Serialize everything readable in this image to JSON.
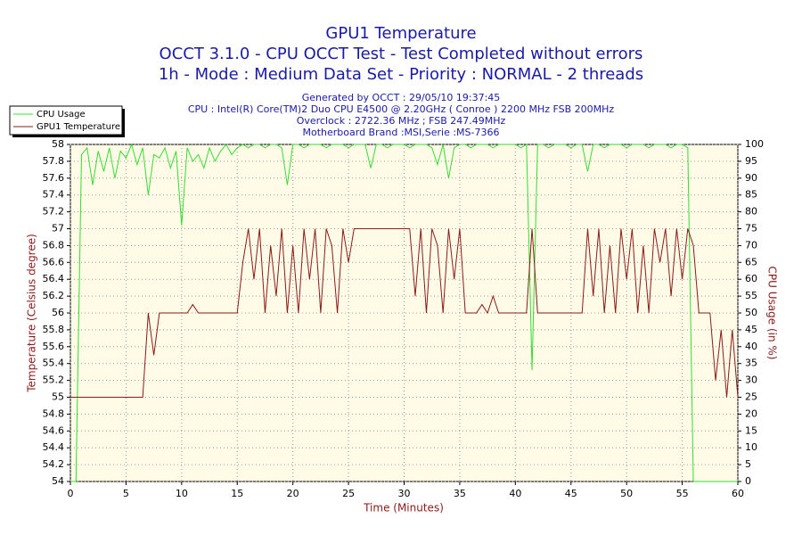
{
  "chart_data": {
    "type": "line",
    "title": "GPU1 Temperature",
    "subtitle": [
      "OCCT 3.1.0 - CPU OCCT Test - Test Completed without errors",
      "1h - Mode : Medium Data Set - Priority : NORMAL - 2 threads"
    ],
    "info": [
      "Generated by OCCT : 29/05/10 19:37:45",
      "CPU : Intel(R) Core(TM)2 Duo CPU E4500 @ 2.20GHz ( Conroe ) 2200 MHz FSB 200MHz",
      "Overclock : 2722.36 MHz ; FSB 247.49MHz",
      "Motherboard Brand :MSI,Serie :MS-7366"
    ],
    "xlabel": "Time (Minutes)",
    "ylabel": "Temperature (Celsius degree)",
    "y2label": "CPU Usage (in %)",
    "xlim": [
      0,
      60
    ],
    "xticks": [
      0,
      5,
      10,
      15,
      20,
      25,
      30,
      35,
      40,
      45,
      50,
      55,
      60
    ],
    "ylim": [
      54,
      58
    ],
    "yticks": [
      54,
      54.2,
      54.4,
      54.6,
      54.8,
      55,
      55.2,
      55.4,
      55.6,
      55.8,
      56,
      56.2,
      56.4,
      56.6,
      56.8,
      57,
      57.2,
      57.4,
      57.6,
      57.8,
      58
    ],
    "y2lim": [
      0,
      100
    ],
    "y2ticks": [
      0,
      5,
      10,
      15,
      20,
      25,
      30,
      35,
      40,
      45,
      50,
      55,
      60,
      65,
      70,
      75,
      80,
      85,
      90,
      95,
      100
    ],
    "grid": true,
    "legend": "top-left",
    "x": [
      0,
      0.5,
      1,
      1.5,
      2,
      2.5,
      3,
      3.5,
      4,
      4.5,
      5,
      5.5,
      6,
      6.5,
      7,
      7.5,
      8,
      8.5,
      9,
      9.5,
      10,
      10.5,
      11,
      11.5,
      12,
      12.5,
      13,
      13.5,
      14,
      14.5,
      15,
      15.5,
      16,
      16.5,
      17,
      17.5,
      18,
      18.5,
      19,
      19.5,
      20,
      20.5,
      21,
      21.5,
      22,
      22.5,
      23,
      23.5,
      24,
      24.5,
      25,
      25.5,
      26,
      26.5,
      27,
      27.5,
      28,
      28.5,
      29,
      29.5,
      30,
      30.5,
      31,
      31.5,
      32,
      32.5,
      33,
      33.5,
      34,
      34.5,
      35,
      35.5,
      36,
      36.5,
      37,
      37.5,
      38,
      38.5,
      39,
      39.5,
      40,
      40.5,
      41,
      41.5,
      42,
      42.5,
      43,
      43.5,
      44,
      44.5,
      45,
      45.5,
      46,
      46.5,
      47,
      47.5,
      48,
      48.5,
      49,
      49.5,
      50,
      50.5,
      51,
      51.5,
      52,
      52.5,
      53,
      53.5,
      54,
      54.5,
      55,
      55.5,
      56,
      56.5,
      57,
      57.5,
      58,
      58.5,
      59,
      59.5,
      60
    ],
    "series": [
      {
        "name": "CPU Usage",
        "color": "#33dd33",
        "axis": "y2",
        "values": [
          0,
          0,
          97,
          99,
          88,
          98,
          92,
          99,
          90,
          98,
          96,
          100,
          94,
          99,
          85,
          97,
          96,
          99,
          93,
          98,
          76,
          99,
          95,
          97,
          93,
          99,
          95,
          98,
          100,
          97,
          99,
          100,
          99,
          100,
          100,
          99,
          100,
          100,
          99,
          88,
          100,
          100,
          99,
          100,
          100,
          100,
          99,
          100,
          100,
          100,
          99,
          100,
          100,
          100,
          93,
          100,
          100,
          99,
          100,
          100,
          100,
          99,
          100,
          100,
          100,
          99,
          94,
          100,
          90,
          99,
          100,
          100,
          99,
          100,
          100,
          100,
          99,
          100,
          100,
          100,
          100,
          99,
          100,
          33,
          100,
          100,
          99,
          100,
          100,
          100,
          99,
          100,
          100,
          92,
          100,
          100,
          99,
          100,
          100,
          100,
          99,
          100,
          100,
          100,
          99,
          100,
          100,
          100,
          99,
          100,
          100,
          99,
          0,
          0,
          0,
          0,
          0,
          0,
          0,
          0,
          0
        ]
      },
      {
        "name": "GPU1 Temperature",
        "color": "#8b1a1a",
        "values": [
          55,
          55,
          55,
          55,
          55,
          55,
          55,
          55,
          55,
          55,
          55,
          55,
          55,
          55,
          56,
          55.5,
          56,
          56,
          56,
          56,
          56,
          56,
          56.1,
          56,
          56,
          56,
          56,
          56,
          56,
          56,
          56,
          56.6,
          57,
          56.4,
          57,
          56,
          56.8,
          56.2,
          57,
          56,
          56.8,
          56,
          57,
          56.4,
          57,
          56,
          57,
          56.8,
          56,
          57,
          56.6,
          57,
          57,
          57,
          57,
          57,
          57,
          57,
          57,
          57,
          57,
          57,
          56.2,
          57,
          56,
          57,
          56.8,
          56,
          57,
          56.4,
          57,
          56,
          56,
          56,
          56.1,
          56,
          56.2,
          56,
          56,
          56,
          56,
          56,
          56,
          57,
          56,
          56,
          56,
          56,
          56,
          56,
          56,
          56,
          56,
          57,
          56.2,
          57,
          56,
          56.8,
          56,
          57,
          56.4,
          57,
          56,
          56.8,
          56,
          57,
          56.6,
          57,
          56.2,
          57,
          56.4,
          57,
          56.8,
          56,
          56,
          56,
          55.2,
          55.8,
          55,
          55.8,
          55
        ]
      }
    ]
  }
}
